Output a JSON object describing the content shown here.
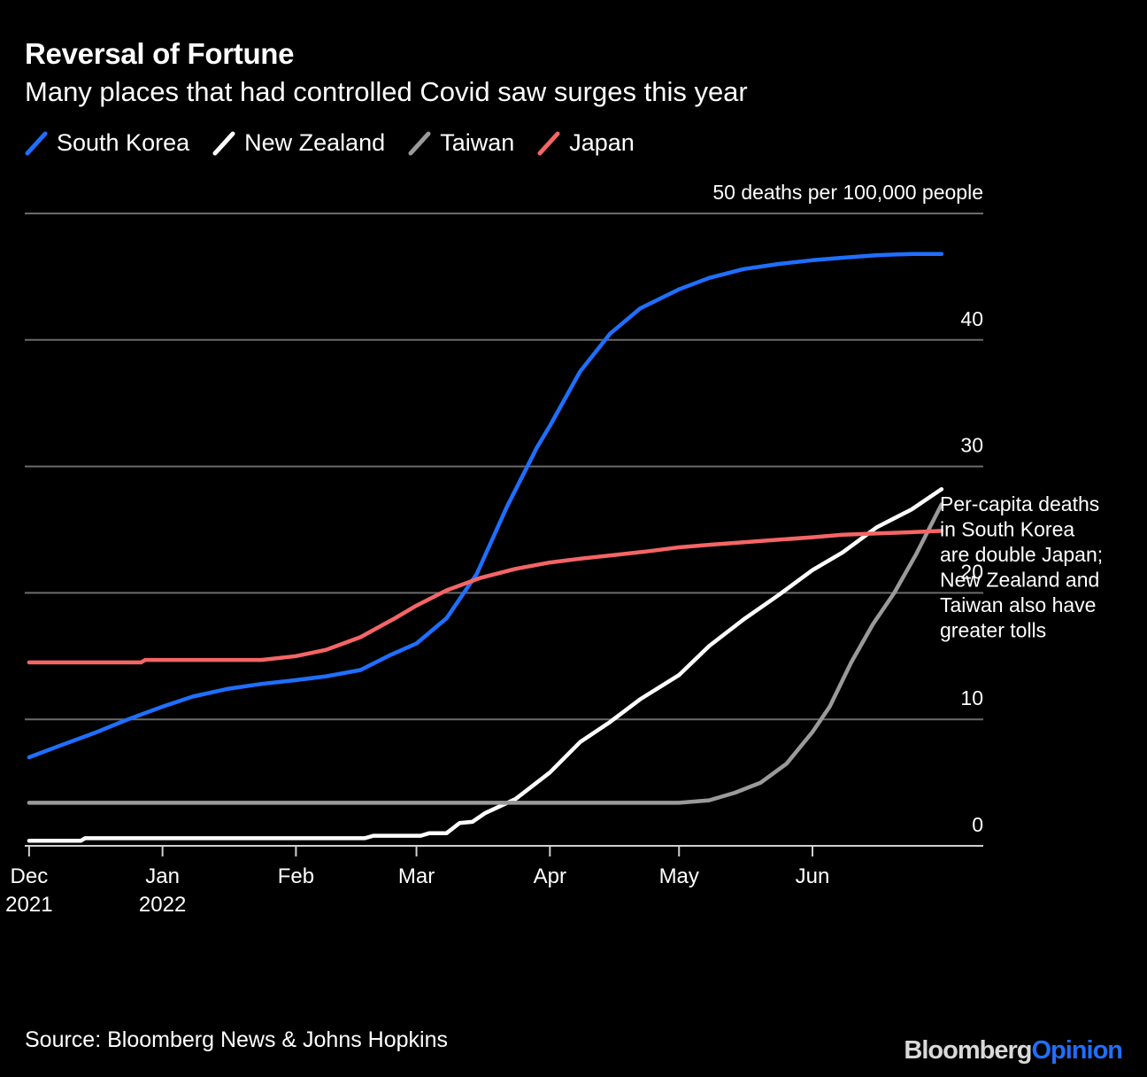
{
  "header": {
    "title": "Reversal of Fortune",
    "subtitle": "Many places that had controlled Covid saw surges this year"
  },
  "legend": [
    {
      "label": "South Korea",
      "color": "#1f6fff",
      "icon": "line-swatch-icon"
    },
    {
      "label": "New Zealand",
      "color": "#ffffff",
      "icon": "line-swatch-icon"
    },
    {
      "label": "Taiwan",
      "color": "#9a9a9a",
      "icon": "line-swatch-icon"
    },
    {
      "label": "Japan",
      "color": "#f56565",
      "icon": "line-swatch-icon"
    }
  ],
  "footer": {
    "source": "Source: Bloomberg News & Johns Hopkins",
    "brand_part1": "Bloomberg",
    "brand_part2": "Opinion"
  },
  "chart_data": {
    "type": "line",
    "title": "Reversal of Fortune",
    "subtitle": "Many places that had controlled Covid saw surges this year",
    "ylabel": "50 deaths per 100,000 people",
    "ylim": [
      0,
      50
    ],
    "yticks": [
      {
        "value": 0,
        "label": "0"
      },
      {
        "value": 10,
        "label": "10"
      },
      {
        "value": 20,
        "label": "20"
      },
      {
        "value": 30,
        "label": "30"
      },
      {
        "value": 40,
        "label": "40"
      },
      {
        "value": 50,
        "label": "50 deaths per 100,000 people"
      }
    ],
    "xlim": [
      "2021-11-30",
      "2022-07-15"
    ],
    "xticks": [
      {
        "date": "2021-12-01",
        "label": "Dec",
        "label2": "2021"
      },
      {
        "date": "2022-01-01",
        "label": "Jan",
        "label2": "2022"
      },
      {
        "date": "2022-02-01",
        "label": "Feb",
        "label2": ""
      },
      {
        "date": "2022-03-01",
        "label": "Mar",
        "label2": ""
      },
      {
        "date": "2022-04-01",
        "label": "Apr",
        "label2": ""
      },
      {
        "date": "2022-05-01",
        "label": "May",
        "label2": ""
      },
      {
        "date": "2022-06-01",
        "label": "Jun",
        "label2": ""
      }
    ],
    "grid": true,
    "legend_position": "top-left",
    "annotation": "Per-capita deaths in South Korea are double Japan; New Zealand and Taiwan also have greater tolls",
    "series": [
      {
        "name": "South Korea",
        "color": "#1f6fff",
        "points": [
          [
            "2021-12-01",
            7.0
          ],
          [
            "2021-12-08",
            7.9
          ],
          [
            "2021-12-16",
            8.9
          ],
          [
            "2021-12-24",
            10.0
          ],
          [
            "2022-01-01",
            11.0
          ],
          [
            "2022-01-08",
            11.8
          ],
          [
            "2022-01-16",
            12.4
          ],
          [
            "2022-01-24",
            12.8
          ],
          [
            "2022-02-01",
            13.1
          ],
          [
            "2022-02-08",
            13.4
          ],
          [
            "2022-02-16",
            13.9
          ],
          [
            "2022-02-23",
            15.1
          ],
          [
            "2022-03-01",
            16.0
          ],
          [
            "2022-03-08",
            18.0
          ],
          [
            "2022-03-15",
            21.5
          ],
          [
            "2022-03-22",
            26.8
          ],
          [
            "2022-03-29",
            31.5
          ],
          [
            "2022-04-01",
            33.2
          ],
          [
            "2022-04-08",
            37.5
          ],
          [
            "2022-04-15",
            40.5
          ],
          [
            "2022-04-22",
            42.5
          ],
          [
            "2022-05-01",
            44.0
          ],
          [
            "2022-05-08",
            44.9
          ],
          [
            "2022-05-16",
            45.6
          ],
          [
            "2022-05-24",
            46.0
          ],
          [
            "2022-06-01",
            46.3
          ],
          [
            "2022-06-08",
            46.5
          ],
          [
            "2022-06-16",
            46.7
          ],
          [
            "2022-06-24",
            46.8
          ],
          [
            "2022-07-01",
            46.8
          ]
        ]
      },
      {
        "name": "New Zealand",
        "color": "#ffffff",
        "points": [
          [
            "2021-12-01",
            0.4
          ],
          [
            "2021-12-13",
            0.4
          ],
          [
            "2021-12-14",
            0.6
          ],
          [
            "2022-01-01",
            0.6
          ],
          [
            "2022-02-01",
            0.6
          ],
          [
            "2022-02-17",
            0.6
          ],
          [
            "2022-02-19",
            0.8
          ],
          [
            "2022-03-02",
            0.8
          ],
          [
            "2022-03-04",
            1.0
          ],
          [
            "2022-03-08",
            1.0
          ],
          [
            "2022-03-11",
            1.8
          ],
          [
            "2022-03-14",
            1.9
          ],
          [
            "2022-03-17",
            2.6
          ],
          [
            "2022-03-24",
            3.7
          ],
          [
            "2022-04-01",
            5.8
          ],
          [
            "2022-04-08",
            8.2
          ],
          [
            "2022-04-15",
            9.8
          ],
          [
            "2022-04-22",
            11.6
          ],
          [
            "2022-05-01",
            13.5
          ],
          [
            "2022-05-08",
            15.8
          ],
          [
            "2022-05-16",
            17.9
          ],
          [
            "2022-05-24",
            19.8
          ],
          [
            "2022-06-01",
            21.8
          ],
          [
            "2022-06-08",
            23.2
          ],
          [
            "2022-06-16",
            25.2
          ],
          [
            "2022-06-24",
            26.6
          ],
          [
            "2022-07-01",
            28.2
          ]
        ]
      },
      {
        "name": "Taiwan",
        "color": "#9a9a9a",
        "points": [
          [
            "2021-12-01",
            3.4
          ],
          [
            "2022-01-01",
            3.4
          ],
          [
            "2022-02-01",
            3.4
          ],
          [
            "2022-03-01",
            3.4
          ],
          [
            "2022-04-01",
            3.4
          ],
          [
            "2022-05-01",
            3.4
          ],
          [
            "2022-05-08",
            3.6
          ],
          [
            "2022-05-14",
            4.2
          ],
          [
            "2022-05-20",
            5.0
          ],
          [
            "2022-05-26",
            6.5
          ],
          [
            "2022-06-01",
            9.0
          ],
          [
            "2022-06-05",
            11.0
          ],
          [
            "2022-06-10",
            14.5
          ],
          [
            "2022-06-15",
            17.5
          ],
          [
            "2022-06-20",
            20.0
          ],
          [
            "2022-06-25",
            23.0
          ],
          [
            "2022-07-01",
            27.0
          ]
        ]
      },
      {
        "name": "Japan",
        "color": "#f56565",
        "points": [
          [
            "2021-12-01",
            14.5
          ],
          [
            "2021-12-27",
            14.5
          ],
          [
            "2021-12-28",
            14.7
          ],
          [
            "2022-01-24",
            14.7
          ],
          [
            "2022-02-01",
            15.0
          ],
          [
            "2022-02-08",
            15.5
          ],
          [
            "2022-02-16",
            16.5
          ],
          [
            "2022-02-24",
            18.0
          ],
          [
            "2022-03-01",
            19.0
          ],
          [
            "2022-03-08",
            20.2
          ],
          [
            "2022-03-16",
            21.2
          ],
          [
            "2022-03-24",
            21.9
          ],
          [
            "2022-04-01",
            22.4
          ],
          [
            "2022-04-08",
            22.7
          ],
          [
            "2022-04-16",
            23.0
          ],
          [
            "2022-04-24",
            23.3
          ],
          [
            "2022-05-01",
            23.6
          ],
          [
            "2022-05-08",
            23.8
          ],
          [
            "2022-05-16",
            24.0
          ],
          [
            "2022-05-24",
            24.2
          ],
          [
            "2022-06-01",
            24.4
          ],
          [
            "2022-06-08",
            24.6
          ],
          [
            "2022-06-16",
            24.7
          ],
          [
            "2022-06-24",
            24.8
          ],
          [
            "2022-07-01",
            24.9
          ]
        ]
      }
    ]
  }
}
